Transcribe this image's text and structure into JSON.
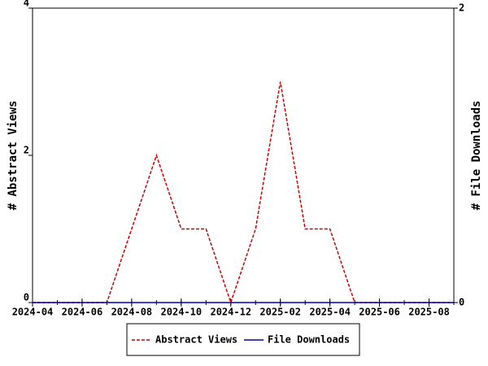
{
  "chart_data": {
    "type": "line",
    "y_label": "# Abstract Views",
    "y2_label": "# File Downloads",
    "x": [
      "2024-04",
      "2024-05",
      "2024-06",
      "2024-07",
      "2024-08",
      "2024-09",
      "2024-10",
      "2024-11",
      "2024-12",
      "2025-01",
      "2025-02",
      "2025-03",
      "2025-04",
      "2025-05",
      "2025-06",
      "2025-07",
      "2025-08",
      "2025-09"
    ],
    "xlim": [
      "2024-04",
      "2025-09"
    ],
    "xticks": [
      "2024-04",
      "2024-06",
      "2024-08",
      "2024-10",
      "2024-12",
      "2025-02",
      "2025-04",
      "2025-06",
      "2025-08"
    ],
    "ylim": [
      0,
      4
    ],
    "yticks": [
      0,
      2,
      4
    ],
    "y2lim": [
      0,
      2
    ],
    "y2ticks": [
      0,
      2
    ],
    "series": [
      {
        "name": "Abstract Views",
        "color": "#cc0000",
        "dash": true,
        "values": [
          0,
          0,
          0,
          0,
          1,
          2,
          1,
          1,
          0,
          1,
          3,
          1,
          1,
          0,
          0,
          0,
          0,
          0
        ]
      },
      {
        "name": "File Downloads",
        "color": "#0000aa",
        "dash": false,
        "axis": "y2",
        "values": [
          0,
          0,
          0,
          0,
          0,
          0,
          0,
          0,
          0,
          0,
          0,
          0,
          0,
          0,
          0,
          0,
          0,
          0
        ]
      }
    ]
  }
}
